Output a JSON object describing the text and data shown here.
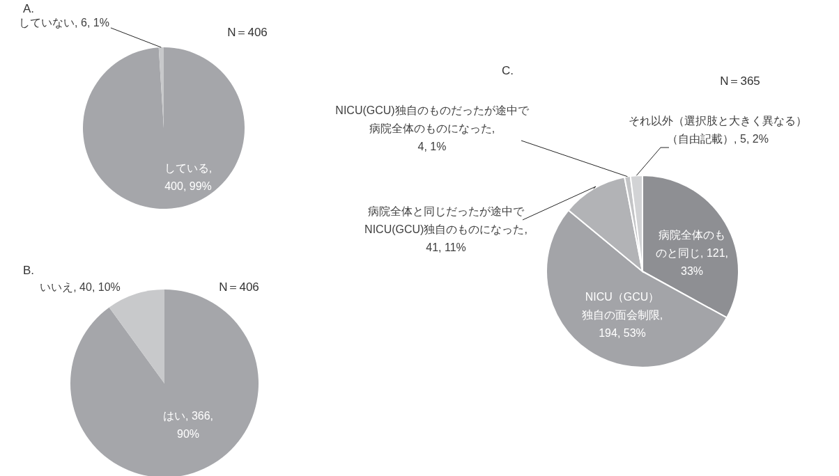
{
  "chart_data": [
    {
      "type": "pie",
      "title": "A.",
      "annotations": [
        "N＝406"
      ],
      "categories": [
        "している",
        "していない"
      ],
      "values": [
        99,
        1
      ],
      "value_labels": [
        ", 400, 99%",
        ", 6, 1%"
      ],
      "colors": [
        "#a5a6aa",
        "#c8c9cb"
      ]
    },
    {
      "type": "pie",
      "title": "B.",
      "annotations": [
        "N＝406"
      ],
      "categories": [
        "はい",
        "いいえ"
      ],
      "values": [
        90,
        10
      ],
      "value_labels": [
        ", 366, 90%",
        ", 40, 10%"
      ],
      "colors": [
        "#a5a6aa",
        "#c8c9cb"
      ]
    },
    {
      "type": "pie",
      "title": "C.",
      "annotations": [
        "N＝365"
      ],
      "categories": [
        "病院全体のものと同じ",
        "NICU（GCU）独自の面会制限",
        "病院全体と同じだったが途中でNICU(GCU)独自のものになった",
        "NICU(GCU)独自のものだったが途中で病院全体のものになった",
        "それ以外（選択肢と大きく異なる）（自由記載）"
      ],
      "values": [
        33,
        53,
        11,
        1,
        2
      ],
      "value_labels": [
        ", 121, 33%",
        ", 194, 53%",
        ", 41, 11%",
        ", 4, 1%",
        ", 5, 2%"
      ],
      "colors": [
        "#8e8f93",
        "#a3a4a8",
        "#b2b3b6",
        "#c3c4c6",
        "#d2d3d5"
      ]
    }
  ]
}
